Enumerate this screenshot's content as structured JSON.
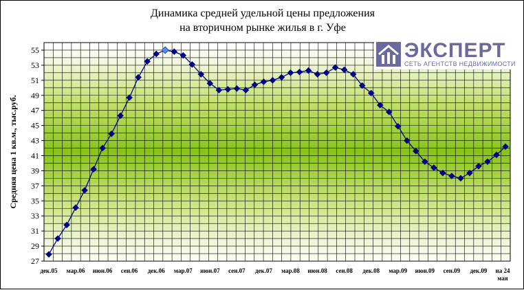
{
  "chart_data": {
    "type": "line",
    "title_lines": [
      "Динамика средней удельной цены предложения",
      "на вторичном рынке жилья в г. Уфе"
    ],
    "ylabel": "Средняя цена 1 кв.м., тыс.руб.",
    "xlabel": "",
    "ylim": [
      27,
      56
    ],
    "yticks": [
      27,
      29,
      31,
      33,
      35,
      37,
      39,
      41,
      43,
      45,
      47,
      49,
      51,
      53,
      55
    ],
    "xtick_labels": [
      "дек.05",
      "мар.06",
      "июн.06",
      "сен.06",
      "дек.06",
      "мар.07",
      "июн.07",
      "сен.07",
      "дек.07",
      "мар.08",
      "июн.08",
      "сен.08",
      "дек.08",
      "мар.09",
      "июн.09",
      "сен.09",
      "дек.09",
      "на 24 мая"
    ],
    "grid": true,
    "series": [
      {
        "values": [
          27.9,
          30.0,
          31.8,
          34.1,
          36.4,
          39.2,
          42.0,
          43.9,
          46.3,
          48.7,
          51.4,
          53.5,
          54.5,
          55.0,
          54.8,
          54.3,
          53.1,
          51.8,
          50.6,
          49.7,
          49.8,
          49.9,
          49.7,
          50.4,
          50.8,
          51.0,
          51.4,
          52.0,
          52.1,
          52.3,
          51.8,
          52.0,
          52.7,
          52.4,
          51.8,
          50.3,
          49.3,
          47.7,
          46.8,
          44.9,
          43.0,
          41.6,
          40.2,
          39.4,
          38.7,
          38.3,
          38.0,
          38.7,
          39.6,
          40.2,
          41.1,
          42.2
        ],
        "highlight_index": 13,
        "color": "#000080",
        "highlight_color": "#4f8ff0"
      }
    ]
  },
  "logo": {
    "name": "ЭКСПЕРТ",
    "tagline": "СЕТЬ АГЕНТСТВ НЕДВИЖИМОСТИ",
    "color": "#6a6a9c"
  }
}
